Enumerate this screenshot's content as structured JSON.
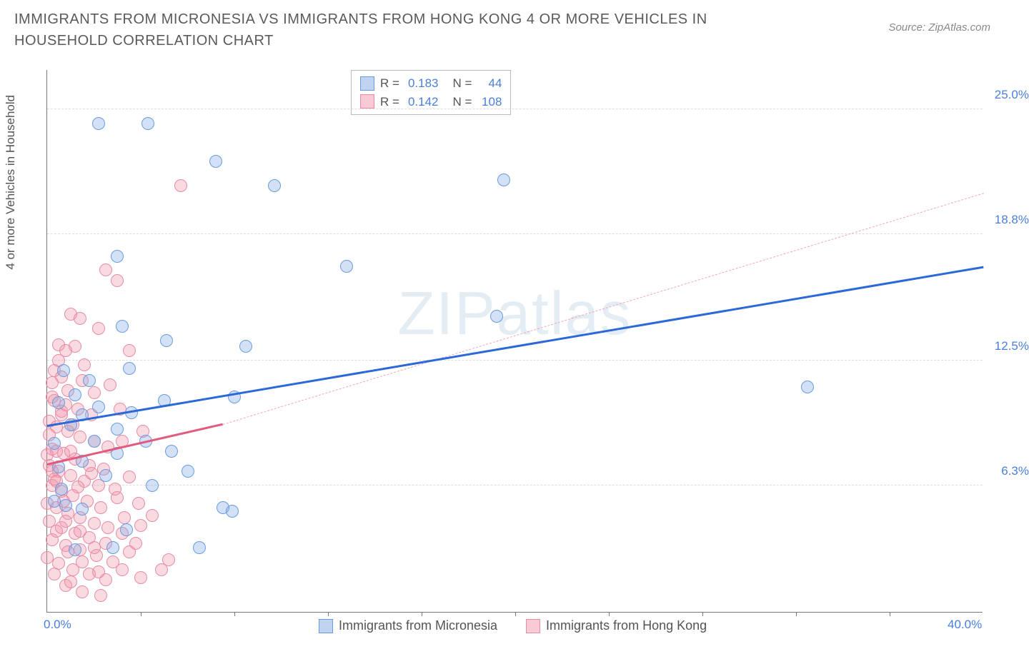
{
  "title": "IMMIGRANTS FROM MICRONESIA VS IMMIGRANTS FROM HONG KONG 4 OR MORE VEHICLES IN HOUSEHOLD CORRELATION CHART",
  "source": "Source: ZipAtlas.com",
  "ylabel": "4 or more Vehicles in Household",
  "watermark_bold": "ZIP",
  "watermark_thin": "atlas",
  "chart": {
    "type": "scatter",
    "xlim": [
      0,
      40
    ],
    "ylim": [
      0,
      27
    ],
    "x_ticks": [
      {
        "pos": 0.0,
        "label": "0.0%"
      },
      {
        "pos": 40.0,
        "label": "40.0%"
      }
    ],
    "y_ticks": [
      {
        "pos": 6.3,
        "label": "6.3%"
      },
      {
        "pos": 12.5,
        "label": "12.5%"
      },
      {
        "pos": 18.8,
        "label": "18.8%"
      },
      {
        "pos": 25.0,
        "label": "25.0%"
      }
    ],
    "x_minor_ticks": [
      4,
      8,
      12,
      16,
      20,
      24,
      28,
      32,
      36
    ],
    "background_color": "#ffffff",
    "grid_color": "#dddddd",
    "point_radius": 9,
    "series": [
      {
        "name": "Immigrants from Micronesia",
        "color_fill": "rgba(130,170,230,0.35)",
        "color_stroke": "#6a9be0",
        "r_value": "0.183",
        "n_value": "44",
        "trend": {
          "x1": 0,
          "y1": 9.2,
          "x2": 40,
          "y2": 17.1,
          "color": "#2b68d8",
          "width": 3,
          "dash": false
        },
        "points": [
          [
            2.2,
            24.3
          ],
          [
            4.3,
            24.3
          ],
          [
            7.2,
            22.4
          ],
          [
            9.7,
            21.2
          ],
          [
            3.0,
            17.7
          ],
          [
            12.8,
            17.2
          ],
          [
            19.2,
            14.7
          ],
          [
            32.5,
            11.2
          ],
          [
            3.2,
            14.2
          ],
          [
            5.1,
            13.5
          ],
          [
            8.5,
            13.2
          ],
          [
            1.2,
            10.8
          ],
          [
            3.5,
            12.1
          ],
          [
            5.0,
            10.5
          ],
          [
            8.0,
            10.7
          ],
          [
            1.0,
            9.3
          ],
          [
            2.0,
            8.5
          ],
          [
            3.0,
            9.1
          ],
          [
            4.2,
            8.5
          ],
          [
            0.5,
            7.2
          ],
          [
            1.5,
            7.5
          ],
          [
            2.5,
            6.8
          ],
          [
            4.5,
            6.3
          ],
          [
            6.0,
            7.0
          ],
          [
            7.5,
            5.2
          ],
          [
            7.9,
            5.0
          ],
          [
            6.5,
            3.2
          ],
          [
            19.5,
            21.5
          ],
          [
            0.3,
            5.5
          ],
          [
            0.8,
            5.3
          ],
          [
            1.5,
            5.1
          ],
          [
            0.5,
            10.4
          ],
          [
            2.8,
            3.2
          ],
          [
            3.4,
            4.1
          ],
          [
            1.2,
            3.1
          ],
          [
            1.5,
            9.8
          ],
          [
            0.3,
            8.4
          ],
          [
            0.6,
            6.1
          ],
          [
            2.2,
            10.2
          ],
          [
            3.0,
            7.9
          ],
          [
            0.7,
            12.0
          ],
          [
            1.8,
            11.5
          ],
          [
            3.6,
            9.9
          ],
          [
            5.3,
            8.0
          ]
        ]
      },
      {
        "name": "Immigrants from Hong Kong",
        "color_fill": "rgba(240,150,170,0.35)",
        "color_stroke": "#e88ca5",
        "r_value": "0.142",
        "n_value": "108",
        "trend_solid": {
          "x1": 0,
          "y1": 7.3,
          "x2": 7.5,
          "y2": 9.3,
          "color": "#e35a7e",
          "width": 3
        },
        "trend_dash": {
          "x1": 7.5,
          "y1": 9.3,
          "x2": 40,
          "y2": 20.8,
          "color": "#f0a8b8",
          "width": 1.5
        },
        "points": [
          [
            5.7,
            21.2
          ],
          [
            2.5,
            17.0
          ],
          [
            3.0,
            16.5
          ],
          [
            1.0,
            14.8
          ],
          [
            1.4,
            14.6
          ],
          [
            2.2,
            14.1
          ],
          [
            0.5,
            13.3
          ],
          [
            1.2,
            13.2
          ],
          [
            3.5,
            13.0
          ],
          [
            0.3,
            12.0
          ],
          [
            0.6,
            11.7
          ],
          [
            1.5,
            11.5
          ],
          [
            2.0,
            10.9
          ],
          [
            2.7,
            11.3
          ],
          [
            0.2,
            10.7
          ],
          [
            0.8,
            10.3
          ],
          [
            1.3,
            10.1
          ],
          [
            1.9,
            9.8
          ],
          [
            3.1,
            10.1
          ],
          [
            0.1,
            9.5
          ],
          [
            0.4,
            9.2
          ],
          [
            0.9,
            9.0
          ],
          [
            1.4,
            8.7
          ],
          [
            2.0,
            8.5
          ],
          [
            2.6,
            8.2
          ],
          [
            3.2,
            8.5
          ],
          [
            0.2,
            8.1
          ],
          [
            0.7,
            7.9
          ],
          [
            1.2,
            7.6
          ],
          [
            1.8,
            7.3
          ],
          [
            2.4,
            7.1
          ],
          [
            4.1,
            9.0
          ],
          [
            0.1,
            7.3
          ],
          [
            0.5,
            7.0
          ],
          [
            1.0,
            6.8
          ],
          [
            1.6,
            6.5
          ],
          [
            2.2,
            6.3
          ],
          [
            2.9,
            6.1
          ],
          [
            3.5,
            6.7
          ],
          [
            0.2,
            6.3
          ],
          [
            0.6,
            6.0
          ],
          [
            1.1,
            5.8
          ],
          [
            1.7,
            5.5
          ],
          [
            2.3,
            5.2
          ],
          [
            3.0,
            5.7
          ],
          [
            3.9,
            5.4
          ],
          [
            0.0,
            5.4
          ],
          [
            0.4,
            5.2
          ],
          [
            0.9,
            4.9
          ],
          [
            1.4,
            4.7
          ],
          [
            2.0,
            4.4
          ],
          [
            2.6,
            4.2
          ],
          [
            3.3,
            4.7
          ],
          [
            4.0,
            4.3
          ],
          [
            0.1,
            4.5
          ],
          [
            0.6,
            4.2
          ],
          [
            1.2,
            3.9
          ],
          [
            1.8,
            3.7
          ],
          [
            2.5,
            3.4
          ],
          [
            3.2,
            3.9
          ],
          [
            3.8,
            3.4
          ],
          [
            4.5,
            4.8
          ],
          [
            0.2,
            3.6
          ],
          [
            0.8,
            3.3
          ],
          [
            1.4,
            3.1
          ],
          [
            2.1,
            2.8
          ],
          [
            2.8,
            2.5
          ],
          [
            3.5,
            3.0
          ],
          [
            4.9,
            2.1
          ],
          [
            0.0,
            2.7
          ],
          [
            0.5,
            2.4
          ],
          [
            1.1,
            2.1
          ],
          [
            1.8,
            1.9
          ],
          [
            2.5,
            1.6
          ],
          [
            3.2,
            2.1
          ],
          [
            4.0,
            1.7
          ],
          [
            0.8,
            1.3
          ],
          [
            1.5,
            1.0
          ],
          [
            2.3,
            0.8
          ],
          [
            5.2,
            2.6
          ],
          [
            0.1,
            8.8
          ],
          [
            0.4,
            8.0
          ],
          [
            0.2,
            7.0
          ],
          [
            0.6,
            9.8
          ],
          [
            0.3,
            10.5
          ],
          [
            0.9,
            11.0
          ],
          [
            0.5,
            12.5
          ],
          [
            0.8,
            13.0
          ],
          [
            1.6,
            12.3
          ],
          [
            1.0,
            8.0
          ],
          [
            0.3,
            6.6
          ],
          [
            0.7,
            5.5
          ],
          [
            1.3,
            6.2
          ],
          [
            1.9,
            6.9
          ],
          [
            0.4,
            4.0
          ],
          [
            0.9,
            3.0
          ],
          [
            1.5,
            2.5
          ],
          [
            2.2,
            2.0
          ],
          [
            0.3,
            1.9
          ],
          [
            1.0,
            1.5
          ],
          [
            0.2,
            11.4
          ],
          [
            0.6,
            10.0
          ],
          [
            1.1,
            9.3
          ],
          [
            0.0,
            7.8
          ],
          [
            0.4,
            6.5
          ],
          [
            0.8,
            4.5
          ],
          [
            1.4,
            4.0
          ],
          [
            2.0,
            3.2
          ]
        ]
      }
    ]
  },
  "legend_top": {
    "r_label": "R =",
    "n_label": "N ="
  },
  "legend_bottom": [
    {
      "label": "Immigrants from Micronesia",
      "fill": "rgba(130,170,230,0.5)",
      "stroke": "#6a9be0"
    },
    {
      "label": "Immigrants from Hong Kong",
      "fill": "rgba(240,150,170,0.5)",
      "stroke": "#e88ca5"
    }
  ]
}
